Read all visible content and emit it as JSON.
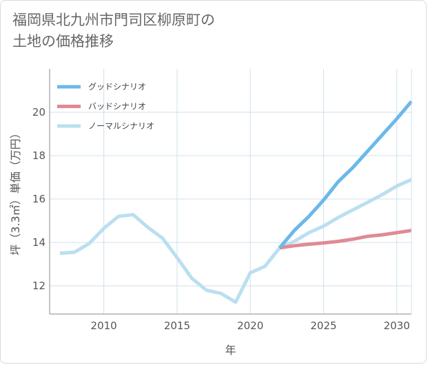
{
  "title": "福岡県北九州市門司区柳原町の\n土地の価格推移",
  "chart_data": {
    "type": "line",
    "xlabel": "年",
    "ylabel": "坪（3.3㎡）単価（万円）",
    "xlim": [
      2006.3,
      2031
    ],
    "ylim": [
      10.7,
      22
    ],
    "xticks": [
      2010,
      2015,
      2020,
      2025,
      2030
    ],
    "yticks": [
      12,
      14,
      16,
      18,
      20
    ],
    "grid": true,
    "legend_position": "top-left",
    "series": [
      {
        "name": "グッドシナリオ",
        "color": "#6cb8ea",
        "x": [
          2022,
          2023,
          2024,
          2025,
          2026,
          2027,
          2028,
          2029,
          2030,
          2031
        ],
        "values": [
          13.75,
          14.55,
          15.2,
          15.95,
          16.8,
          17.45,
          18.2,
          18.95,
          19.7,
          20.5
        ]
      },
      {
        "name": "バッドシナリオ",
        "color": "#e08a95",
        "x": [
          2022,
          2023,
          2024,
          2025,
          2026,
          2027,
          2028,
          2029,
          2030,
          2031
        ],
        "values": [
          13.75,
          13.85,
          13.92,
          13.98,
          14.05,
          14.15,
          14.28,
          14.35,
          14.45,
          14.55
        ]
      },
      {
        "name": "ノーマルシナリオ",
        "color": "#badff0",
        "x": [
          2007,
          2008,
          2009,
          2010,
          2011,
          2012,
          2013,
          2014,
          2015,
          2016,
          2017,
          2018,
          2019,
          2020,
          2021,
          2022,
          2023,
          2024,
          2025,
          2026,
          2027,
          2028,
          2029,
          2030,
          2031
        ],
        "values": [
          13.5,
          13.55,
          13.95,
          14.65,
          15.2,
          15.28,
          14.7,
          14.2,
          13.3,
          12.35,
          11.8,
          11.65,
          11.25,
          12.6,
          12.9,
          13.75,
          14.05,
          14.45,
          14.75,
          15.15,
          15.5,
          15.85,
          16.2,
          16.6,
          16.9
        ]
      }
    ]
  }
}
